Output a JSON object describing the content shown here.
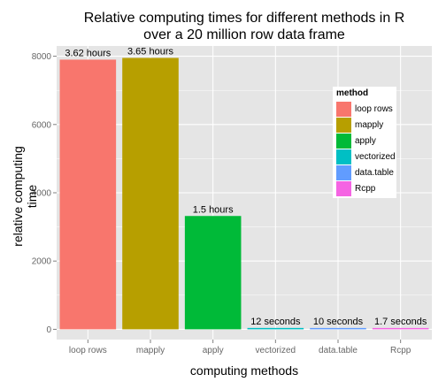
{
  "chart_data": {
    "type": "bar",
    "title": "Relative computing times for different methods in R",
    "subtitle": "over a 20 million row data frame",
    "xlabel": "computing methods",
    "ylabel": "relative computing time",
    "categories": [
      "loop rows",
      "mapply",
      "apply",
      "vectorized",
      "data.table",
      "Rcpp"
    ],
    "values": [
      7900,
      7950,
      3320,
      40,
      35,
      6
    ],
    "bar_labels": [
      "3.62 hours",
      "3.65 hours",
      "1.5 hours",
      "12 seconds",
      "10 seconds",
      "1.7 seconds"
    ],
    "colors": [
      "#F8766D",
      "#B79F00",
      "#00BA38",
      "#00BFC4",
      "#619CFF",
      "#F564E3"
    ],
    "ylim": [
      -300,
      8300
    ],
    "yticks": [
      0,
      2000,
      4000,
      6000,
      8000
    ],
    "grid": true,
    "panel_background": "#E5E5E5",
    "legend": {
      "title": "method",
      "placement": "right-inside",
      "items": [
        "loop rows",
        "mapply",
        "apply",
        "vectorized",
        "data.table",
        "Rcpp"
      ]
    }
  }
}
